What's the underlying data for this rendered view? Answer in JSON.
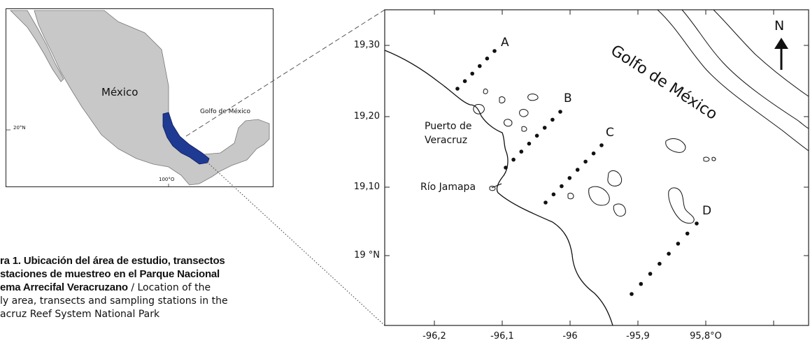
{
  "inset_map": {
    "country_label": "México",
    "gulf_label": "Golfo de  México",
    "lat_label": "20°N",
    "lon_label": "100°O"
  },
  "caption": {
    "lines": [
      {
        "bold": "ra 1. Ubicación del área de estudio, transectos",
        "regular": ""
      },
      {
        "bold": "staciones de muestreo en el Parque Nacional",
        "regular": ""
      },
      {
        "bold": "ema Arrecifal Veracruzano",
        "regular": " / Location of the"
      },
      {
        "bold": "",
        "regular": "ly area, transects and sampling stations in the"
      },
      {
        "bold": "",
        "regular": "acruz Reef System National Park"
      }
    ]
  },
  "main_map": {
    "north_label": "N",
    "gulf_label": "Golfo de México",
    "port_label_line1": "Puerto de",
    "port_label_line2": "Veracruz",
    "river_label": "Río Jamapa",
    "y_ticks": [
      "19,30",
      "19,20",
      "19,10",
      "19 °N"
    ],
    "x_ticks": [
      "-96,2",
      "-96,1",
      "-96",
      "-95,9",
      "95,8°O"
    ],
    "transects": [
      {
        "label": "A"
      },
      {
        "label": "B"
      },
      {
        "label": "C"
      },
      {
        "label": "D"
      }
    ]
  }
}
